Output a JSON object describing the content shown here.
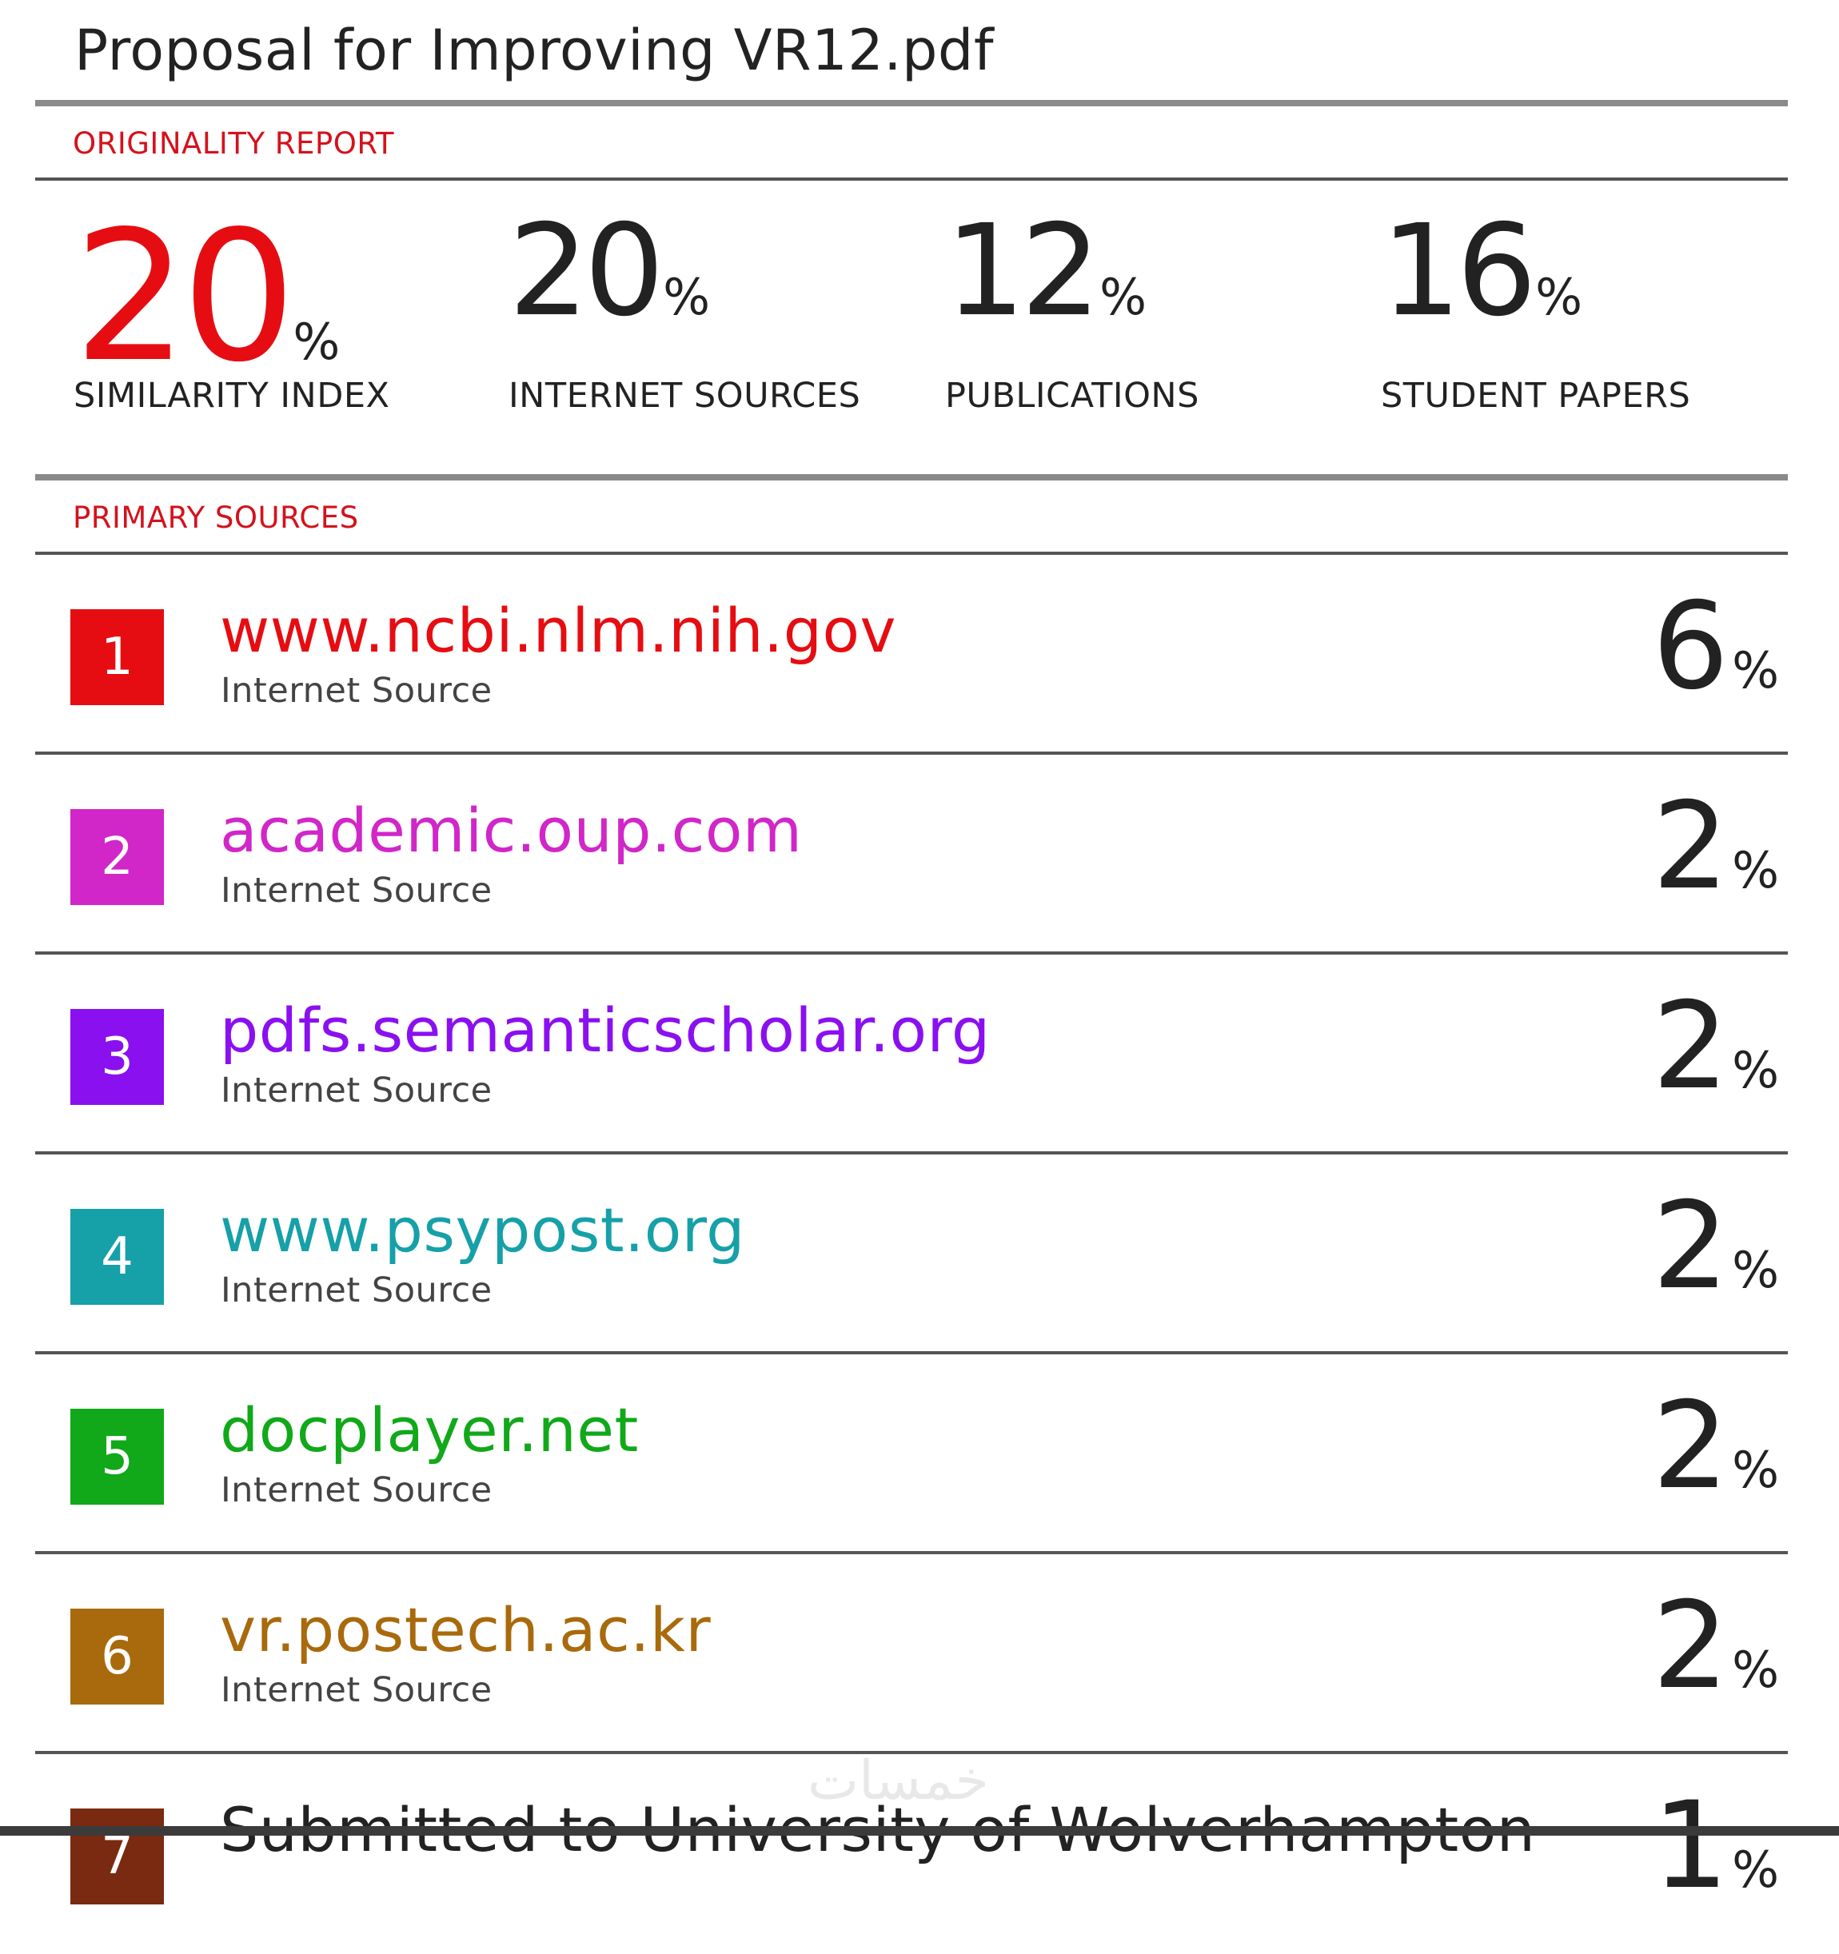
{
  "document": {
    "title": "Proposal for Improving VR12.pdf"
  },
  "originality": {
    "label": "ORIGINALITY REPORT",
    "stats": [
      {
        "value": "20",
        "unit": "%",
        "caption": "SIMILARITY INDEX"
      },
      {
        "value": "20",
        "unit": "%",
        "caption": "INTERNET SOURCES"
      },
      {
        "value": "12",
        "unit": "%",
        "caption": "PUBLICATIONS"
      },
      {
        "value": "16",
        "unit": "%",
        "caption": "STUDENT PAPERS"
      }
    ],
    "accent_color": "#e60d12"
  },
  "primary_sources": {
    "label": "PRIMARY SOURCES",
    "items": [
      {
        "rank": "1",
        "name": "www.ncbi.nlm.nih.gov",
        "type": "Internet Source",
        "percent": "6",
        "unit": "%",
        "color": "#e60d12"
      },
      {
        "rank": "2",
        "name": "academic.oup.com",
        "type": "Internet Source",
        "percent": "2",
        "unit": "%",
        "color": "#d126c8"
      },
      {
        "rank": "3",
        "name": "pdfs.semanticscholar.org",
        "type": "Internet Source",
        "percent": "2",
        "unit": "%",
        "color": "#8a10f0"
      },
      {
        "rank": "4",
        "name": "www.psypost.org",
        "type": "Internet Source",
        "percent": "2",
        "unit": "%",
        "color": "#16a0a8"
      },
      {
        "rank": "5",
        "name": "docplayer.net",
        "type": "Internet Source",
        "percent": "2",
        "unit": "%",
        "color": "#11a81a"
      },
      {
        "rank": "6",
        "name": "vr.postech.ac.kr",
        "type": "Internet Source",
        "percent": "2",
        "unit": "%",
        "color": "#a86a0c"
      },
      {
        "rank": "7",
        "name": "Submitted to University of Wolverhampton",
        "type": "",
        "percent": "1",
        "unit": "%",
        "color": "#7a2a10"
      }
    ]
  },
  "watermark": {
    "text": "خمسات"
  }
}
